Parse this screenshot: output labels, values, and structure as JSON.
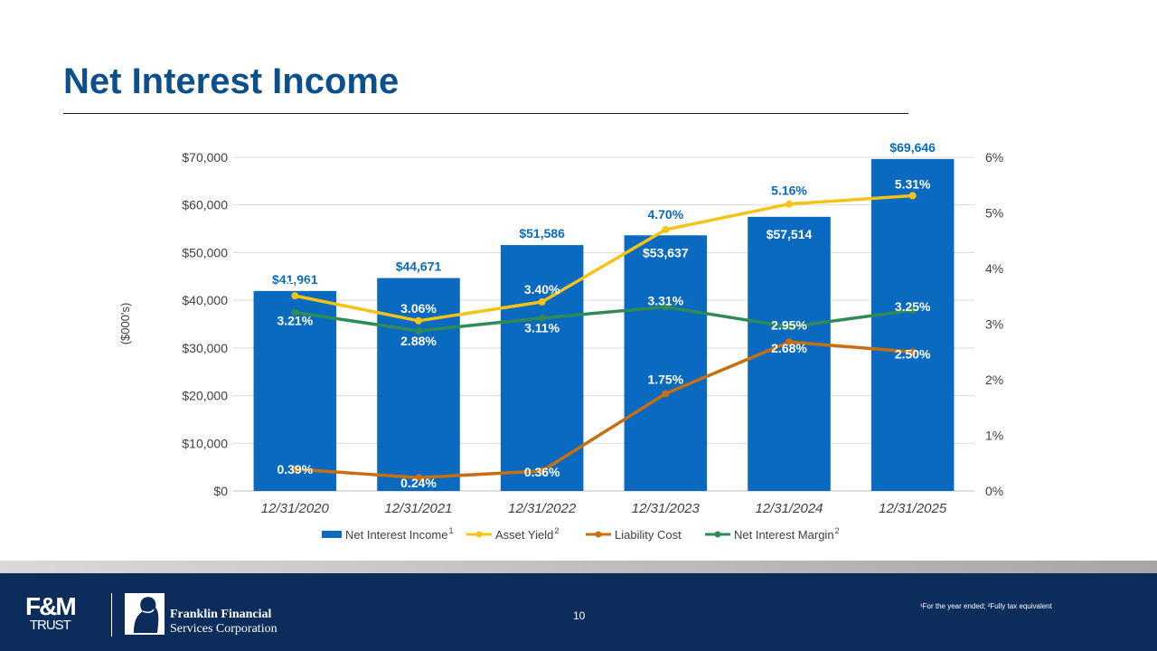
{
  "slide": {
    "title": "Net Interest Income",
    "page_number": "10",
    "footnote": "¹For the year ended; ²Fully tax equivalent"
  },
  "logos": {
    "left_logo": "F&M TRUST",
    "company_line1": "Franklin Financial",
    "company_line2": "Services Corporation"
  },
  "colors": {
    "bar": "#0a6abf",
    "asset_yield": "#f5c216",
    "liability_cost": "#c76e13",
    "net_interest_margin": "#2e8b57",
    "title": "#0b4f8c",
    "footer": "#0c2d5c"
  },
  "chart_data": {
    "type": "bar",
    "categories": [
      "12/31/2020",
      "12/31/2021",
      "12/31/2022",
      "12/31/2023",
      "12/31/2024",
      "12/31/2025"
    ],
    "ylabel": "($000's)",
    "ylim": [
      0,
      70000
    ],
    "y_ticks": [
      "$0",
      "$10,000",
      "$20,000",
      "$30,000",
      "$40,000",
      "$50,000",
      "$60,000",
      "$70,000"
    ],
    "y2lim": [
      0,
      6
    ],
    "y2_ticks": [
      "0%",
      "1%",
      "2%",
      "3%",
      "4%",
      "5%",
      "6%"
    ],
    "grid": true,
    "legend_position": "bottom",
    "bar_series": {
      "name": "Net Interest Income",
      "superscript": "1",
      "values": [
        41961,
        44671,
        51586,
        53637,
        57514,
        69646
      ],
      "labels": [
        "$41,961",
        "$44,671",
        "$51,586",
        "$53,637",
        "$57,514",
        "$69,646"
      ]
    },
    "line_series": [
      {
        "name": "Asset Yield",
        "superscript": "2",
        "axis": "secondary",
        "values": [
          3.51,
          3.06,
          3.4,
          4.7,
          5.16,
          5.31
        ],
        "labels": [
          "3.51%",
          "3.06%",
          "3.40%",
          "4.70%",
          "5.16%",
          "5.31%"
        ]
      },
      {
        "name": "Liability Cost",
        "superscript": "",
        "axis": "secondary",
        "values": [
          0.39,
          0.24,
          0.36,
          1.75,
          2.68,
          2.5
        ],
        "labels": [
          "0.39%",
          "0.24%",
          "0.36%",
          "1.75%",
          "2.68%",
          "2.50%"
        ]
      },
      {
        "name": "Net Interest Margin",
        "superscript": "2",
        "axis": "secondary",
        "values": [
          3.21,
          2.88,
          3.11,
          3.31,
          2.95,
          3.25
        ],
        "labels": [
          "3.21%",
          "2.88%",
          "3.11%",
          "3.31%",
          "2.95%",
          "3.25%"
        ]
      }
    ]
  }
}
